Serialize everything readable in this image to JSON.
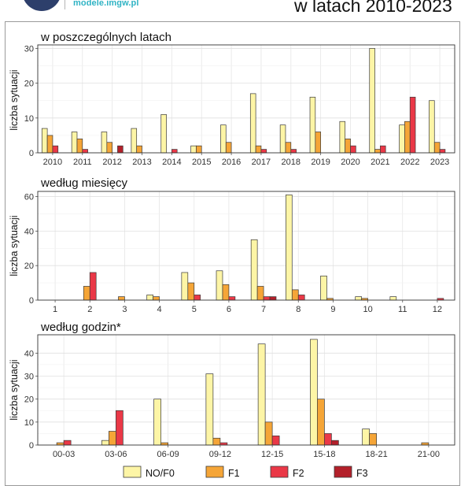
{
  "header": {
    "url": "modele.imgw.pl",
    "title": "w latach 2010-2023"
  },
  "colors": {
    "NO/F0": "#fdf5a6",
    "F1": "#f5a537",
    "F2": "#ea3847",
    "F3": "#b3202a"
  },
  "legend": [
    "NO/F0",
    "F1",
    "F2",
    "F3"
  ],
  "chart_data": [
    {
      "type": "bar",
      "title": "w poszczególnych latach",
      "ylabel": "liczba sytuacji",
      "xlabel": "",
      "categories": [
        "2010",
        "2011",
        "2012",
        "2013",
        "2014",
        "2015",
        "2016",
        "2017",
        "2018",
        "2019",
        "2020",
        "2021",
        "2022",
        "2023"
      ],
      "ylim": [
        0,
        31
      ],
      "yticks": [
        0,
        10,
        20,
        30
      ],
      "series": [
        {
          "name": "NO/F0",
          "values": [
            7,
            6,
            6,
            7,
            11,
            2,
            8,
            17,
            8,
            16,
            9,
            30,
            8,
            15
          ]
        },
        {
          "name": "F1",
          "values": [
            5,
            4,
            3,
            2,
            0,
            2,
            3,
            2,
            3,
            6,
            4,
            1,
            9,
            3
          ]
        },
        {
          "name": "F2",
          "values": [
            2,
            1,
            0,
            0,
            1,
            0,
            0,
            1,
            1,
            0,
            2,
            2,
            16,
            1
          ]
        },
        {
          "name": "F3",
          "values": [
            0,
            0,
            2,
            0,
            0,
            0,
            0,
            0,
            0,
            0,
            0,
            0,
            0,
            0
          ]
        }
      ]
    },
    {
      "type": "bar",
      "title": "według miesięcy",
      "ylabel": "liczba sytuacji",
      "xlabel": "",
      "categories": [
        "1",
        "2",
        "3",
        "4",
        "5",
        "6",
        "7",
        "8",
        "9",
        "10",
        "11",
        "12"
      ],
      "ylim": [
        0,
        63
      ],
      "yticks": [
        0,
        20,
        40,
        60
      ],
      "series": [
        {
          "name": "NO/F0",
          "values": [
            0,
            0,
            0,
            3,
            16,
            17,
            35,
            61,
            14,
            2,
            2,
            0
          ]
        },
        {
          "name": "F1",
          "values": [
            0,
            8,
            2,
            2,
            10,
            9,
            8,
            6,
            1,
            1,
            0,
            0
          ]
        },
        {
          "name": "F2",
          "values": [
            0,
            16,
            0,
            0,
            3,
            2,
            2,
            3,
            0,
            0,
            0,
            1
          ]
        },
        {
          "name": "F3",
          "values": [
            0,
            0,
            0,
            0,
            0,
            0,
            2,
            0,
            0,
            0,
            0,
            0
          ]
        }
      ]
    },
    {
      "type": "bar",
      "title": "według godzin*",
      "ylabel": "liczba sytuacji",
      "xlabel": "",
      "categories": [
        "00-03",
        "03-06",
        "06-09",
        "09-12",
        "12-15",
        "15-18",
        "18-21",
        "21-00"
      ],
      "ylim": [
        0,
        48
      ],
      "yticks": [
        0,
        10,
        20,
        30,
        40
      ],
      "series": [
        {
          "name": "NO/F0",
          "values": [
            0,
            2,
            20,
            31,
            44,
            46,
            7,
            0
          ]
        },
        {
          "name": "F1",
          "values": [
            1,
            6,
            1,
            3,
            10,
            20,
            5,
            1
          ]
        },
        {
          "name": "F2",
          "values": [
            2,
            15,
            0,
            1,
            4,
            5,
            0,
            0
          ]
        },
        {
          "name": "F3",
          "values": [
            0,
            0,
            0,
            0,
            0,
            2,
            0,
            0
          ]
        }
      ]
    }
  ]
}
